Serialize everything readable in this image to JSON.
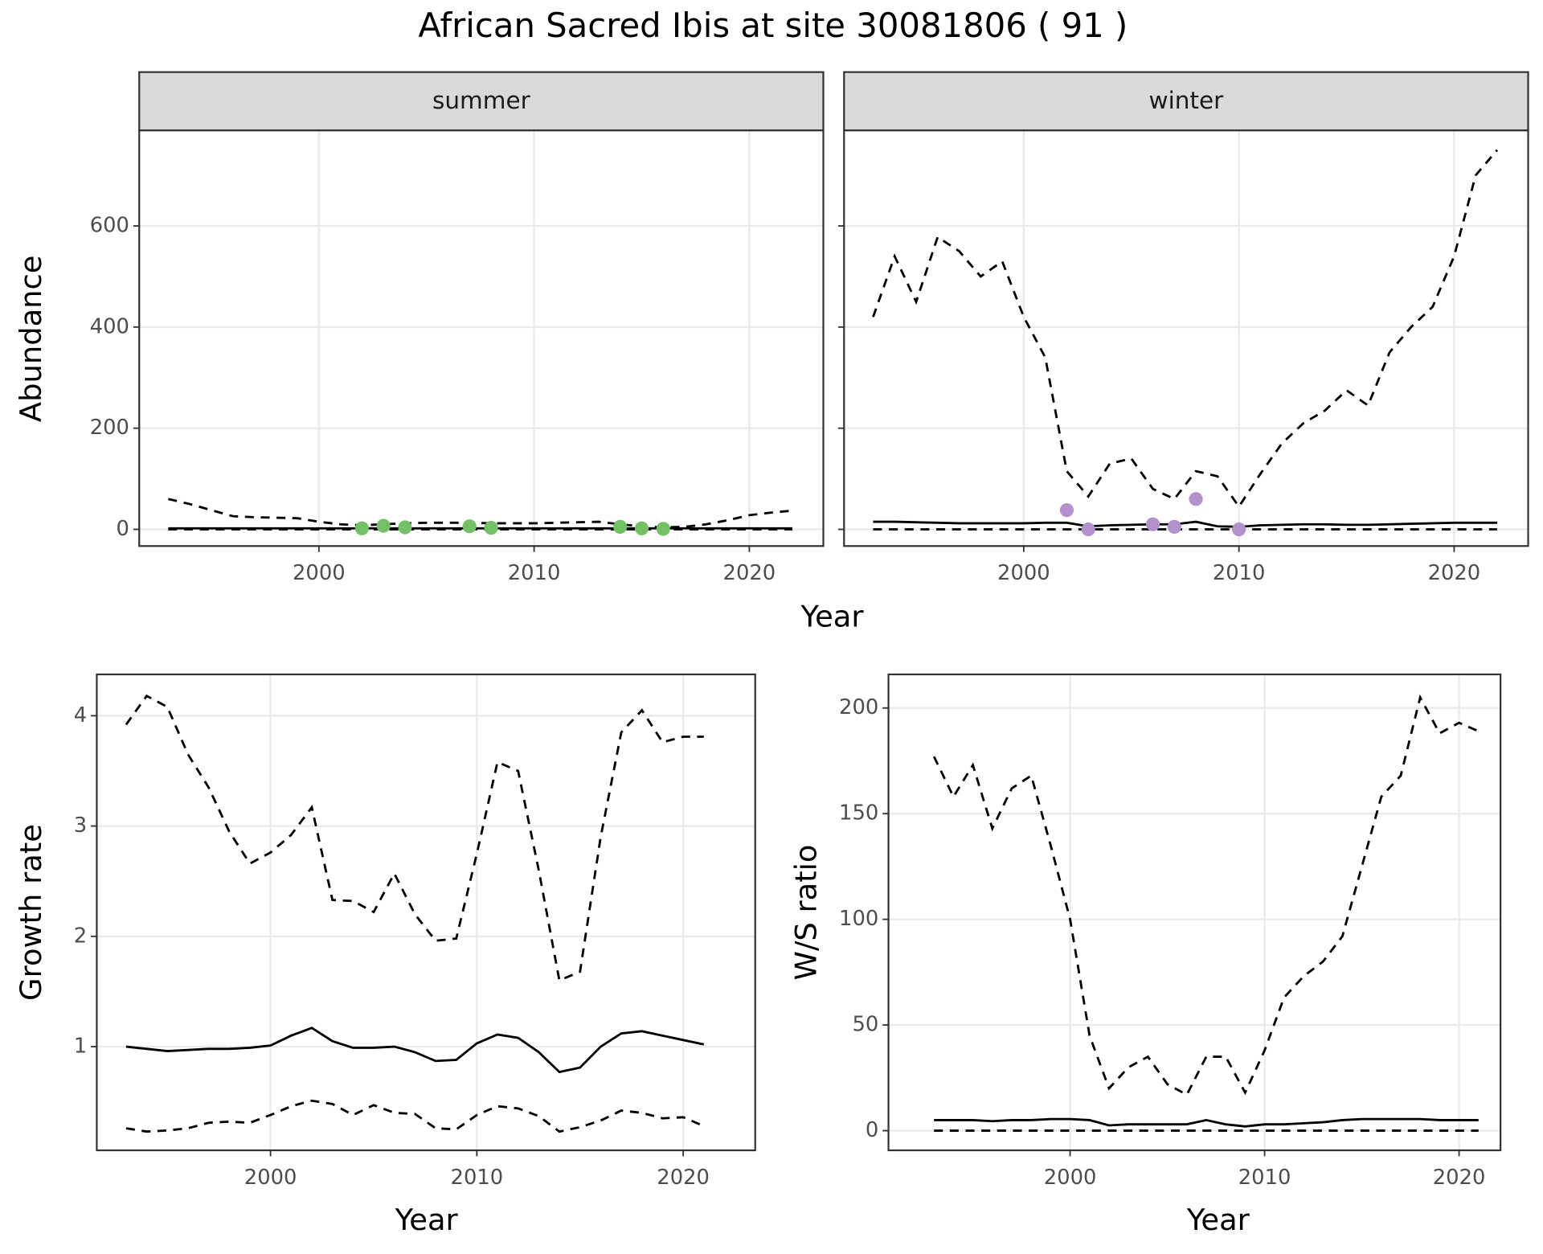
{
  "title": "African Sacred Ibis at site 30081806 ( 91 )",
  "chart_data": [
    {
      "type": "line",
      "strip": "summer",
      "ylabel": "Abundance",
      "xlabel": "Year",
      "xlim": [
        1991.65,
        2023.44
      ],
      "ylim": [
        -33,
        789
      ],
      "xticks": [
        2000,
        2010,
        2020
      ],
      "yticks": [
        0,
        200,
        400,
        600
      ],
      "show_ytick_labels": true,
      "grid": true,
      "x": [
        1993,
        1994,
        1995,
        1996,
        1997,
        1998,
        1999,
        2000,
        2001,
        2002,
        2003,
        2004,
        2005,
        2006,
        2007,
        2008,
        2009,
        2010,
        2011,
        2012,
        2013,
        2014,
        2015,
        2016,
        2017,
        2018,
        2019,
        2020,
        2021,
        2022
      ],
      "series": [
        {
          "style": "dashed",
          "color": "#000000",
          "values": [
            60,
            50,
            38,
            26,
            24,
            23,
            22,
            15,
            10,
            8,
            10,
            12,
            13,
            13,
            13,
            12,
            12,
            12,
            13,
            14,
            15,
            10,
            6,
            4,
            5,
            10,
            18,
            28,
            33,
            37
          ]
        },
        {
          "style": "solid",
          "color": "#000000",
          "values": [
            2,
            2,
            2,
            2,
            2,
            2,
            2,
            2,
            2,
            2,
            2,
            2,
            2,
            2,
            2,
            2,
            2,
            2,
            2,
            2,
            2,
            2,
            2,
            2,
            2,
            2,
            2,
            2,
            2,
            2
          ]
        },
        {
          "style": "dashed",
          "color": "#000000",
          "values": [
            0,
            0,
            0,
            0,
            0,
            0,
            0,
            0,
            0,
            0,
            0,
            0,
            0,
            0,
            0,
            0,
            0,
            0,
            0,
            0,
            0,
            0,
            0,
            0,
            0,
            0,
            0,
            0,
            0,
            0
          ]
        },
        {
          "style": "points",
          "color": "#74c066",
          "x": [
            2002,
            2003,
            2004,
            2007,
            2008,
            2014,
            2015,
            2016
          ],
          "values": [
            2,
            7,
            4,
            6,
            3,
            5,
            2,
            1
          ]
        }
      ]
    },
    {
      "type": "line",
      "strip": "winter",
      "xlim": [
        1991.65,
        2023.44
      ],
      "ylim": [
        -33,
        789
      ],
      "xticks": [
        2000,
        2010,
        2020
      ],
      "yticks": [
        0,
        200,
        400,
        600
      ],
      "show_ytick_labels": false,
      "grid": true,
      "x": [
        1993,
        1994,
        1995,
        1996,
        1997,
        1998,
        1999,
        2000,
        2001,
        2002,
        2003,
        2004,
        2005,
        2006,
        2007,
        2008,
        2009,
        2010,
        2011,
        2012,
        2013,
        2014,
        2015,
        2016,
        2017,
        2018,
        2019,
        2020,
        2021,
        2022
      ],
      "series": [
        {
          "style": "dashed",
          "color": "#000000",
          "values": [
            420,
            540,
            450,
            578,
            550,
            500,
            530,
            420,
            340,
            115,
            65,
            130,
            140,
            80,
            60,
            115,
            105,
            45,
            110,
            170,
            210,
            235,
            275,
            245,
            350,
            400,
            440,
            540,
            700,
            750
          ]
        },
        {
          "style": "solid",
          "color": "#000000",
          "values": [
            15,
            15,
            14,
            13,
            12,
            12,
            12,
            12,
            13,
            13,
            6,
            8,
            9,
            10,
            10,
            15,
            6,
            5,
            8,
            9,
            10,
            10,
            9,
            9,
            10,
            11,
            12,
            13,
            13,
            13
          ]
        },
        {
          "style": "dashed",
          "color": "#000000",
          "values": [
            0,
            0,
            0,
            0,
            0,
            0,
            0,
            0,
            0,
            0,
            0,
            0,
            0,
            0,
            0,
            0,
            0,
            0,
            0,
            0,
            0,
            0,
            0,
            0,
            0,
            0,
            0,
            0,
            0,
            0
          ]
        },
        {
          "style": "points",
          "color": "#b391cc",
          "x": [
            2002,
            2003,
            2006,
            2007,
            2008,
            2010
          ],
          "values": [
            38,
            0,
            10,
            5,
            60,
            0
          ]
        }
      ]
    },
    {
      "type": "line",
      "ylabel": "Growth rate",
      "xlabel": "Year",
      "xlim": [
        1991.58,
        2023.49
      ],
      "ylim": [
        0.06,
        4.375
      ],
      "xticks": [
        2000,
        2010,
        2020
      ],
      "yticks": [
        1,
        2,
        3,
        4
      ],
      "show_ytick_labels": true,
      "grid": true,
      "x": [
        1993,
        1994,
        1995,
        1996,
        1997,
        1998,
        1999,
        2000,
        2001,
        2002,
        2003,
        2004,
        2005,
        2006,
        2007,
        2008,
        2009,
        2010,
        2011,
        2012,
        2013,
        2014,
        2015,
        2016,
        2017,
        2018,
        2019,
        2020,
        2021
      ],
      "series": [
        {
          "style": "dashed",
          "color": "#000000",
          "values": [
            3.92,
            4.18,
            4.08,
            3.65,
            3.35,
            2.95,
            2.66,
            2.76,
            2.92,
            3.17,
            2.33,
            2.32,
            2.22,
            2.57,
            2.2,
            1.96,
            1.98,
            2.75,
            3.58,
            3.5,
            2.6,
            1.6,
            1.68,
            2.9,
            3.85,
            4.05,
            3.76,
            3.81,
            3.81
          ]
        },
        {
          "style": "solid",
          "color": "#000000",
          "values": [
            1.0,
            0.98,
            0.96,
            0.97,
            0.98,
            0.98,
            0.99,
            1.01,
            1.1,
            1.17,
            1.05,
            0.99,
            0.99,
            1.0,
            0.95,
            0.87,
            0.88,
            1.03,
            1.11,
            1.08,
            0.95,
            0.77,
            0.81,
            1.0,
            1.12,
            1.14,
            1.1,
            1.06,
            1.02
          ]
        },
        {
          "style": "dashed",
          "color": "#000000",
          "values": [
            0.26,
            0.23,
            0.24,
            0.26,
            0.31,
            0.32,
            0.31,
            0.38,
            0.46,
            0.51,
            0.48,
            0.38,
            0.47,
            0.4,
            0.39,
            0.26,
            0.25,
            0.38,
            0.46,
            0.44,
            0.37,
            0.23,
            0.27,
            0.33,
            0.42,
            0.4,
            0.35,
            0.36,
            0.28
          ]
        }
      ]
    },
    {
      "type": "line",
      "ylabel": "W/S ratio",
      "xlabel": "Year",
      "xlim": [
        1990.66,
        2022.13
      ],
      "ylim": [
        -9.3,
        215.9
      ],
      "xticks": [
        2000,
        2010,
        2020
      ],
      "yticks": [
        0,
        50,
        100,
        150,
        200
      ],
      "show_ytick_labels": true,
      "grid": true,
      "x": [
        1993,
        1994,
        1995,
        1996,
        1997,
        1998,
        1999,
        2000,
        2001,
        2002,
        2003,
        2004,
        2005,
        2006,
        2007,
        2008,
        2009,
        2010,
        2011,
        2012,
        2013,
        2014,
        2015,
        2016,
        2017,
        2018,
        2019,
        2020,
        2021
      ],
      "series": [
        {
          "style": "dashed",
          "color": "#000000",
          "values": [
            177,
            158,
            173,
            143,
            162,
            168,
            135,
            100,
            45,
            20,
            30,
            35,
            22,
            17,
            35,
            35,
            18,
            38,
            63,
            73,
            80,
            92,
            125,
            158,
            168,
            205,
            188,
            193,
            189
          ]
        },
        {
          "style": "solid",
          "color": "#000000",
          "values": [
            5,
            5,
            5,
            4.5,
            5,
            5,
            5.5,
            5.5,
            5,
            2.5,
            3,
            3,
            3,
            3,
            5,
            3,
            2,
            3,
            3,
            3.5,
            4,
            5,
            5.5,
            5.5,
            5.5,
            5.5,
            5,
            5,
            5
          ]
        },
        {
          "style": "dashed",
          "color": "#000000",
          "values": [
            0,
            0,
            0,
            0,
            0,
            0,
            0,
            0,
            0,
            0,
            0,
            0,
            0,
            0,
            0,
            0,
            0,
            0,
            0,
            0,
            0,
            0,
            0,
            0,
            0,
            0,
            0,
            0,
            0
          ]
        }
      ]
    }
  ]
}
